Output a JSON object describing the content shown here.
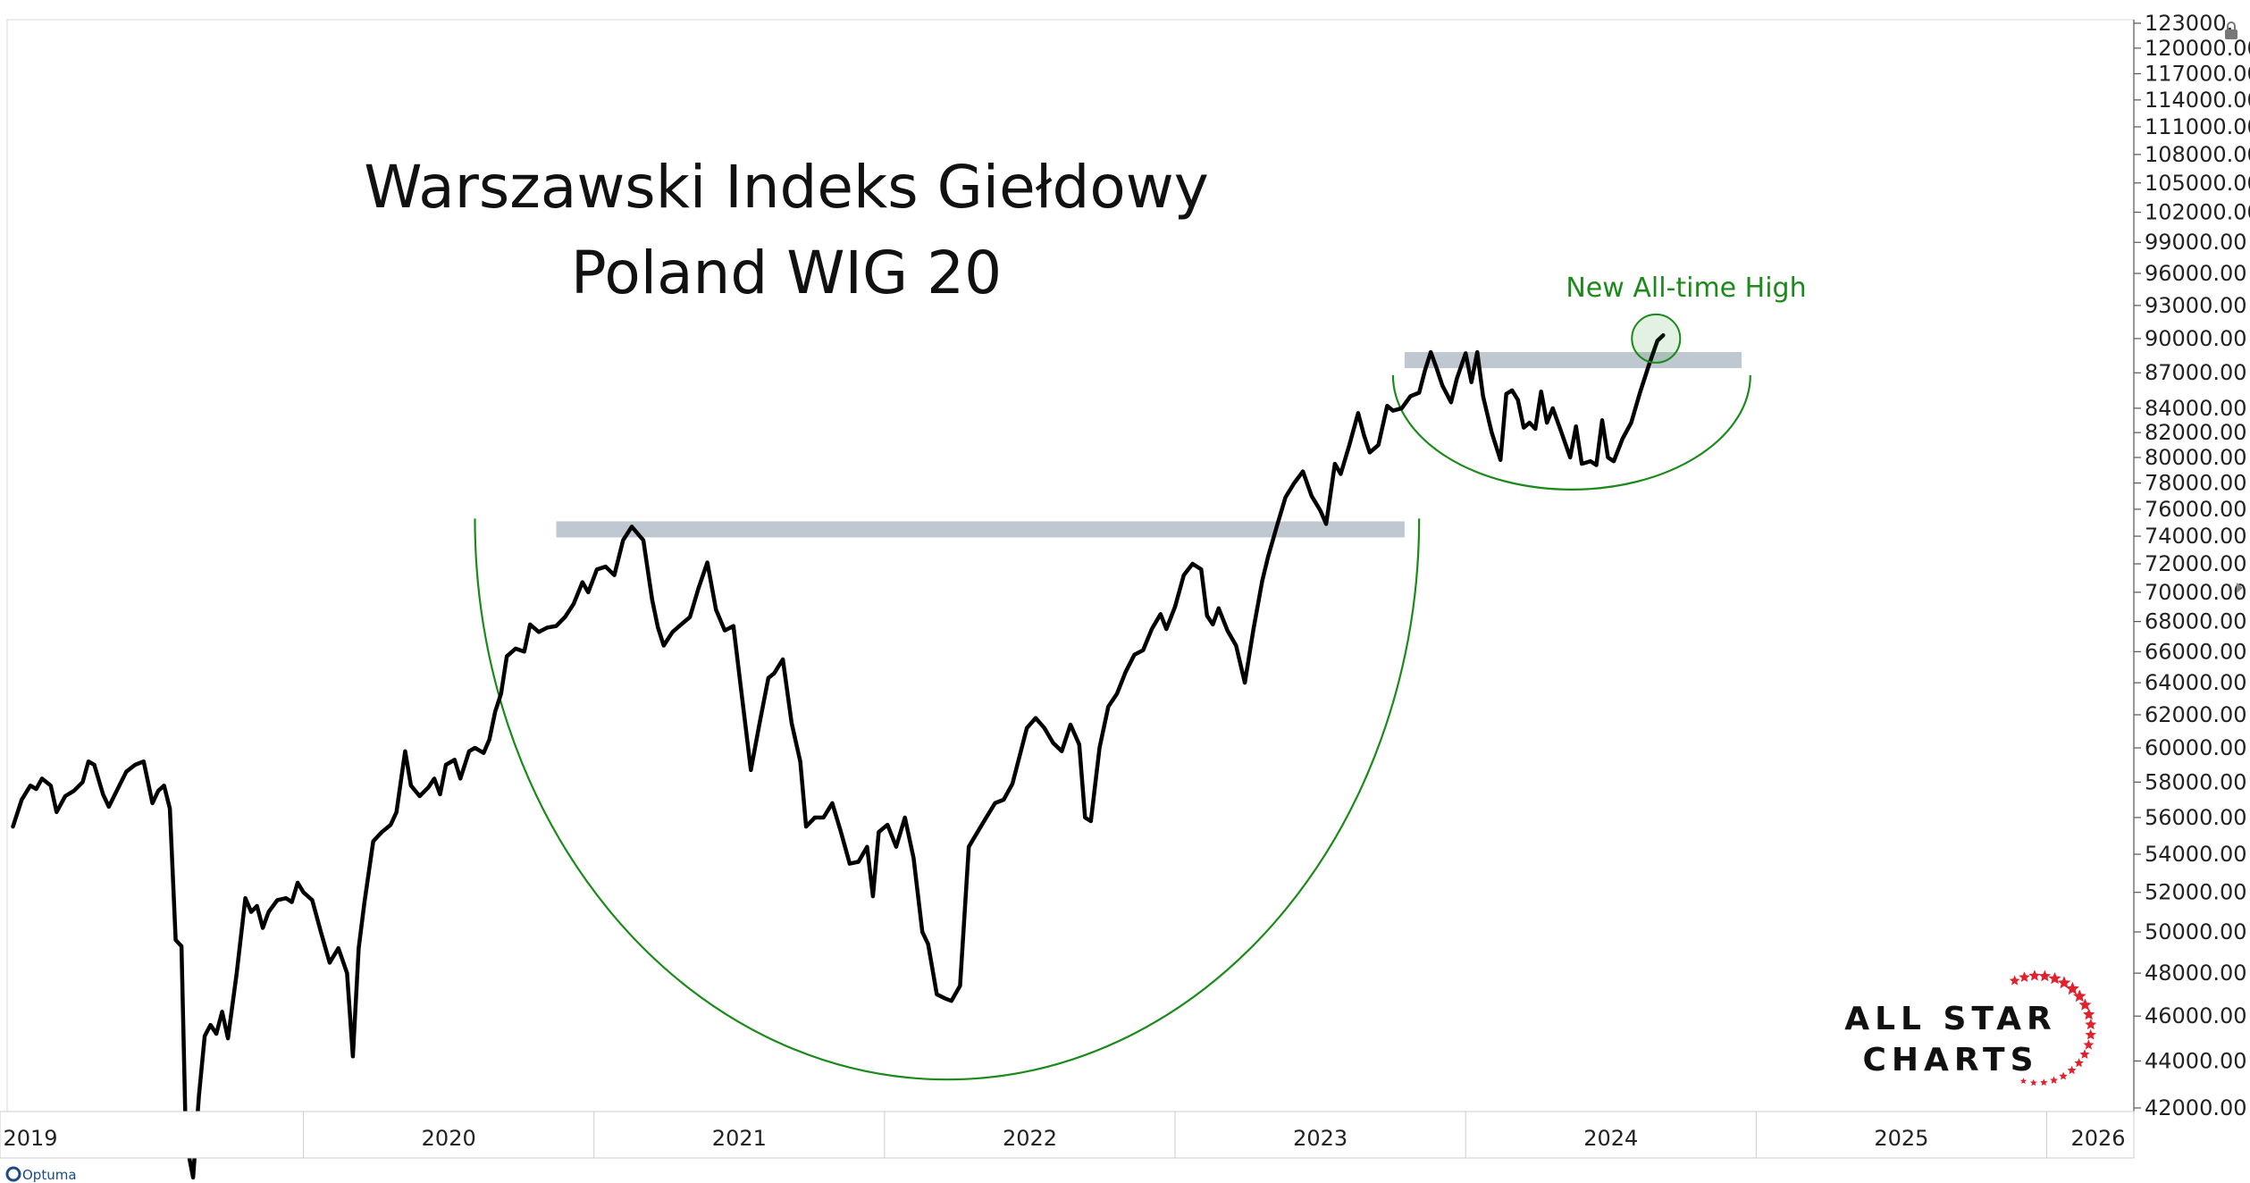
{
  "chart_data": {
    "type": "line",
    "title": "Warszawski Indeks Giełdowy",
    "subtitle": "Poland WIG 20",
    "ylim": [
      42000,
      123000
    ],
    "y_scale": "log",
    "y_ticks": [
      "123000.",
      "120000.00",
      "117000.00",
      "114000.00",
      "111000.00",
      "108000.00",
      "105000.00",
      "102000.00",
      "99000.00",
      "96000.00",
      "93000.00",
      "90000.00",
      "87000.00",
      "84000.00",
      "82000.00",
      "80000.00",
      "78000.00",
      "76000.00",
      "74000.00",
      "72000.00",
      "70000.00",
      "68000.00",
      "66000.00",
      "64000.00",
      "62000.00",
      "60000.00",
      "58000.00",
      "56000.00",
      "54000.00",
      "52000.00",
      "50000.00",
      "48000.00",
      "46000.00",
      "44000.00",
      "42000.00"
    ],
    "y_tick_values": [
      123000,
      120000,
      117000,
      114000,
      111000,
      108000,
      105000,
      102000,
      99000,
      96000,
      93000,
      90000,
      87000,
      84000,
      82000,
      80000,
      78000,
      76000,
      74000,
      72000,
      70000,
      68000,
      66000,
      64000,
      62000,
      60000,
      58000,
      56000,
      54000,
      52000,
      50000,
      48000,
      46000,
      44000,
      42000
    ],
    "x_labels": [
      "2019",
      "2020",
      "2021",
      "2022",
      "2023",
      "2024",
      "2025",
      "2026"
    ],
    "xlim": [
      2018.98,
      2026.3
    ],
    "grid": false,
    "legend": "none",
    "series": [
      {
        "values": [
          [
            2019.0,
            55500
          ],
          [
            2019.03,
            57000
          ],
          [
            2019.06,
            57800
          ],
          [
            2019.08,
            57600
          ],
          [
            2019.1,
            58200
          ],
          [
            2019.13,
            57800
          ],
          [
            2019.15,
            56300
          ],
          [
            2019.18,
            57200
          ],
          [
            2019.21,
            57500
          ],
          [
            2019.24,
            58000
          ],
          [
            2019.26,
            59200
          ],
          [
            2019.28,
            59000
          ],
          [
            2019.31,
            57300
          ],
          [
            2019.33,
            56600
          ],
          [
            2019.36,
            57600
          ],
          [
            2019.39,
            58600
          ],
          [
            2019.42,
            59000
          ],
          [
            2019.45,
            59200
          ],
          [
            2019.48,
            56800
          ],
          [
            2019.5,
            57500
          ],
          [
            2019.52,
            57800
          ],
          [
            2019.54,
            56500
          ],
          [
            2019.56,
            49600
          ],
          [
            2019.58,
            49300
          ],
          [
            2019.595,
            40700
          ],
          [
            2019.62,
            39200
          ],
          [
            2019.64,
            42500
          ],
          [
            2019.66,
            45100
          ],
          [
            2019.68,
            45600
          ],
          [
            2019.7,
            45200
          ],
          [
            2019.72,
            46200
          ],
          [
            2019.74,
            45000
          ],
          [
            2019.77,
            48000
          ],
          [
            2019.8,
            51700
          ],
          [
            2019.82,
            51000
          ],
          [
            2019.84,
            51300
          ],
          [
            2019.86,
            50200
          ],
          [
            2019.88,
            51000
          ],
          [
            2019.91,
            51600
          ],
          [
            2019.94,
            51700
          ],
          [
            2019.96,
            51500
          ],
          [
            2019.98,
            52500
          ],
          [
            2020.0,
            52000
          ],
          [
            2020.03,
            51600
          ],
          [
            2020.06,
            50000
          ],
          [
            2020.09,
            48500
          ],
          [
            2020.12,
            49200
          ],
          [
            2020.15,
            48000
          ],
          [
            2020.17,
            44200
          ],
          [
            2020.19,
            49200
          ],
          [
            2020.21,
            51500
          ],
          [
            2020.24,
            54700
          ],
          [
            2020.27,
            55200
          ],
          [
            2020.3,
            55600
          ],
          [
            2020.32,
            56300
          ],
          [
            2020.35,
            59800
          ],
          [
            2020.37,
            57800
          ],
          [
            2020.4,
            57200
          ],
          [
            2020.43,
            57700
          ],
          [
            2020.45,
            58200
          ],
          [
            2020.47,
            57300
          ],
          [
            2020.49,
            59000
          ],
          [
            2020.52,
            59300
          ],
          [
            2020.54,
            58200
          ],
          [
            2020.57,
            59800
          ],
          [
            2020.59,
            60000
          ],
          [
            2020.62,
            59700
          ],
          [
            2020.64,
            60500
          ],
          [
            2020.66,
            62200
          ],
          [
            2020.68,
            63300
          ],
          [
            2020.7,
            65700
          ],
          [
            2020.73,
            66200
          ],
          [
            2020.76,
            66000
          ],
          [
            2020.78,
            67800
          ],
          [
            2020.81,
            67300
          ],
          [
            2020.84,
            67600
          ],
          [
            2020.87,
            67700
          ],
          [
            2020.9,
            68300
          ],
          [
            2020.93,
            69200
          ],
          [
            2020.96,
            70700
          ],
          [
            2020.98,
            70000
          ],
          [
            2021.01,
            71600
          ],
          [
            2021.04,
            71800
          ],
          [
            2021.07,
            71200
          ],
          [
            2021.1,
            73700
          ],
          [
            2021.13,
            74700
          ],
          [
            2021.17,
            73700
          ],
          [
            2021.2,
            69500
          ],
          [
            2021.22,
            67600
          ],
          [
            2021.24,
            66400
          ],
          [
            2021.27,
            67300
          ],
          [
            2021.3,
            67800
          ],
          [
            2021.33,
            68300
          ],
          [
            2021.36,
            70300
          ],
          [
            2021.39,
            72100
          ],
          [
            2021.42,
            68800
          ],
          [
            2021.45,
            67400
          ],
          [
            2021.48,
            67700
          ],
          [
            2021.51,
            63000
          ],
          [
            2021.54,
            58700
          ],
          [
            2021.57,
            61500
          ],
          [
            2021.6,
            64300
          ],
          [
            2021.62,
            64600
          ],
          [
            2021.65,
            65500
          ],
          [
            2021.68,
            61500
          ],
          [
            2021.71,
            59200
          ],
          [
            2021.73,
            55500
          ],
          [
            2021.76,
            56000
          ],
          [
            2021.79,
            56000
          ],
          [
            2021.82,
            56800
          ],
          [
            2021.85,
            55200
          ],
          [
            2021.88,
            53500
          ],
          [
            2021.91,
            53600
          ],
          [
            2021.94,
            54400
          ],
          [
            2021.96,
            51800
          ],
          [
            2021.98,
            55200
          ],
          [
            2022.01,
            55600
          ],
          [
            2022.04,
            54400
          ],
          [
            2022.07,
            56000
          ],
          [
            2022.1,
            53800
          ],
          [
            2022.13,
            50000
          ],
          [
            2022.15,
            49400
          ],
          [
            2022.18,
            47000
          ],
          [
            2022.21,
            46800
          ],
          [
            2022.23,
            46700
          ],
          [
            2022.26,
            47400
          ],
          [
            2022.29,
            54400
          ],
          [
            2022.32,
            55200
          ],
          [
            2022.35,
            56000
          ],
          [
            2022.38,
            56800
          ],
          [
            2022.41,
            57000
          ],
          [
            2022.44,
            57900
          ],
          [
            2022.46,
            59200
          ],
          [
            2022.49,
            61200
          ],
          [
            2022.52,
            61800
          ],
          [
            2022.55,
            61200
          ],
          [
            2022.58,
            60300
          ],
          [
            2022.61,
            59800
          ],
          [
            2022.64,
            61400
          ],
          [
            2022.67,
            60200
          ],
          [
            2022.69,
            56000
          ],
          [
            2022.71,
            55800
          ],
          [
            2022.74,
            60000
          ],
          [
            2022.77,
            62500
          ],
          [
            2022.8,
            63300
          ],
          [
            2022.83,
            64700
          ],
          [
            2022.86,
            65800
          ],
          [
            2022.89,
            66100
          ],
          [
            2022.92,
            67500
          ],
          [
            2022.95,
            68500
          ],
          [
            2022.97,
            67500
          ],
          [
            2023.0,
            69000
          ],
          [
            2023.03,
            71200
          ],
          [
            2023.06,
            72000
          ],
          [
            2023.09,
            71600
          ],
          [
            2023.11,
            68400
          ],
          [
            2023.13,
            67800
          ],
          [
            2023.15,
            68900
          ],
          [
            2023.18,
            67400
          ],
          [
            2023.21,
            66400
          ],
          [
            2023.24,
            64000
          ],
          [
            2023.27,
            67500
          ],
          [
            2023.3,
            70800
          ],
          [
            2023.32,
            72500
          ],
          [
            2023.35,
            74700
          ],
          [
            2023.38,
            76900
          ],
          [
            2023.41,
            78000
          ],
          [
            2023.44,
            78900
          ],
          [
            2023.47,
            77000
          ],
          [
            2023.5,
            75900
          ],
          [
            2023.52,
            74900
          ],
          [
            2023.55,
            79500
          ],
          [
            2023.57,
            78700
          ],
          [
            2023.6,
            81000
          ],
          [
            2023.63,
            83600
          ],
          [
            2023.65,
            81800
          ],
          [
            2023.67,
            80400
          ],
          [
            2023.7,
            81000
          ],
          [
            2023.73,
            84200
          ],
          [
            2023.75,
            83800
          ],
          [
            2023.78,
            84000
          ],
          [
            2023.81,
            85000
          ],
          [
            2023.84,
            85300
          ],
          [
            2023.86,
            87200
          ],
          [
            2023.88,
            88800
          ],
          [
            2023.9,
            87400
          ],
          [
            2023.92,
            85900
          ],
          [
            2023.95,
            84500
          ],
          [
            2023.97,
            86500
          ],
          [
            2024.0,
            88700
          ],
          [
            2024.02,
            86200
          ],
          [
            2024.04,
            88800
          ],
          [
            2024.06,
            85000
          ],
          [
            2024.09,
            82000
          ],
          [
            2024.12,
            79800
          ],
          [
            2024.14,
            85200
          ],
          [
            2024.16,
            85500
          ],
          [
            2024.18,
            84700
          ],
          [
            2024.2,
            82400
          ],
          [
            2024.22,
            82800
          ],
          [
            2024.24,
            82300
          ],
          [
            2024.26,
            85400
          ],
          [
            2024.28,
            82800
          ],
          [
            2024.3,
            84000
          ],
          [
            2024.33,
            82000
          ],
          [
            2024.36,
            80000
          ],
          [
            2024.38,
            82500
          ],
          [
            2024.4,
            79500
          ],
          [
            2024.43,
            79700
          ],
          [
            2024.45,
            79400
          ],
          [
            2024.47,
            83000
          ],
          [
            2024.49,
            80000
          ],
          [
            2024.51,
            79700
          ],
          [
            2024.54,
            81500
          ],
          [
            2024.57,
            82800
          ],
          [
            2024.6,
            85300
          ],
          [
            2024.63,
            87600
          ],
          [
            2024.66,
            89800
          ],
          [
            2024.68,
            90300
          ]
        ]
      }
    ],
    "resistance_bands": [
      {
        "x_start": 2020.87,
        "x_end": 2023.79,
        "value": 74500
      },
      {
        "x_start": 2023.79,
        "x_end": 2024.95,
        "value": 88100
      }
    ],
    "annotations": [
      {
        "text": "New All-time High",
        "x": 2024.68,
        "y": 90000
      }
    ],
    "colors": {
      "line": "#000000",
      "band": "#aab4c0",
      "arc": "#1a8a1a",
      "annotation": "#1a8a1a",
      "logo_star": "#e0212e"
    }
  },
  "branding": {
    "logo_line1": "ALL STAR",
    "logo_line2": "CHARTS",
    "credit": "Optuma"
  }
}
